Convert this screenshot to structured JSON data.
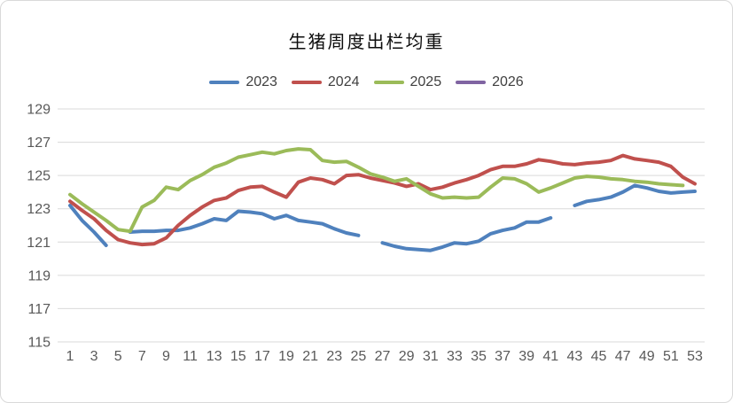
{
  "chart": {
    "border_color": "#d9d9d9",
    "gridline_color": "#d9d9d9",
    "tick_label_color": "#595959",
    "title_color": "#0d0d0d"
  },
  "chart_data": {
    "type": "line",
    "title": "生猪周度出栏均重",
    "xlabel": "",
    "ylabel": "",
    "ylim": [
      115,
      129
    ],
    "y_ticks": [
      129,
      127,
      125,
      123,
      121,
      119,
      117,
      115
    ],
    "x_tick_labels": [
      1,
      3,
      5,
      7,
      9,
      11,
      13,
      15,
      17,
      19,
      21,
      23,
      25,
      27,
      29,
      31,
      33,
      35,
      37,
      39,
      41,
      43,
      45,
      47,
      49,
      51,
      53
    ],
    "x_weeks": 53,
    "grid": "horizontal",
    "legend_position": "top",
    "series": [
      {
        "name": "2023",
        "color": "#4F81BD",
        "values": [
          123.2,
          122.3,
          121.6,
          120.8,
          null,
          121.6,
          121.65,
          121.65,
          121.7,
          121.7,
          121.85,
          122.1,
          122.4,
          122.3,
          122.85,
          122.8,
          122.7,
          122.4,
          122.6,
          122.3,
          122.2,
          122.1,
          121.8,
          121.55,
          121.4,
          null,
          120.95,
          120.75,
          120.6,
          120.55,
          120.5,
          120.7,
          120.95,
          120.9,
          121.05,
          121.5,
          121.7,
          121.85,
          122.2,
          122.2,
          122.45,
          null,
          123.2,
          123.45,
          123.55,
          123.7,
          124.0,
          124.4,
          124.25,
          124.05,
          123.95,
          124.0,
          124.05
        ]
      },
      {
        "name": "2024",
        "color": "#C0504D",
        "values": [
          123.45,
          122.9,
          122.4,
          121.7,
          121.15,
          120.95,
          120.85,
          120.9,
          121.25,
          122.0,
          122.6,
          123.1,
          123.5,
          123.65,
          124.1,
          124.3,
          124.35,
          124.0,
          123.7,
          124.6,
          124.85,
          124.75,
          124.5,
          125.0,
          125.05,
          124.85,
          124.7,
          124.55,
          124.35,
          124.5,
          124.15,
          124.3,
          124.55,
          124.75,
          125.0,
          125.35,
          125.55,
          125.55,
          125.7,
          125.95,
          125.85,
          125.7,
          125.65,
          125.75,
          125.8,
          125.9,
          126.2,
          126.0,
          125.9,
          125.8,
          125.55,
          124.9,
          124.5
        ]
      },
      {
        "name": "2025",
        "color": "#9BBB59",
        "values": [
          123.85,
          123.3,
          122.8,
          122.3,
          121.75,
          121.65,
          123.1,
          123.5,
          124.3,
          124.15,
          124.7,
          125.05,
          125.5,
          125.75,
          126.1,
          126.25,
          126.4,
          126.3,
          126.5,
          126.6,
          126.55,
          125.9,
          125.8,
          125.85,
          125.5,
          125.1,
          124.9,
          124.65,
          124.8,
          124.35,
          123.9,
          123.65,
          123.7,
          123.65,
          123.7,
          124.3,
          124.85,
          124.8,
          124.5,
          124.0,
          124.25,
          124.55,
          124.85,
          124.95,
          124.9,
          124.8,
          124.75,
          124.65,
          124.6,
          124.5,
          124.45,
          124.4,
          null
        ]
      },
      {
        "name": "2026",
        "color": "#8064A2",
        "values": []
      }
    ]
  }
}
